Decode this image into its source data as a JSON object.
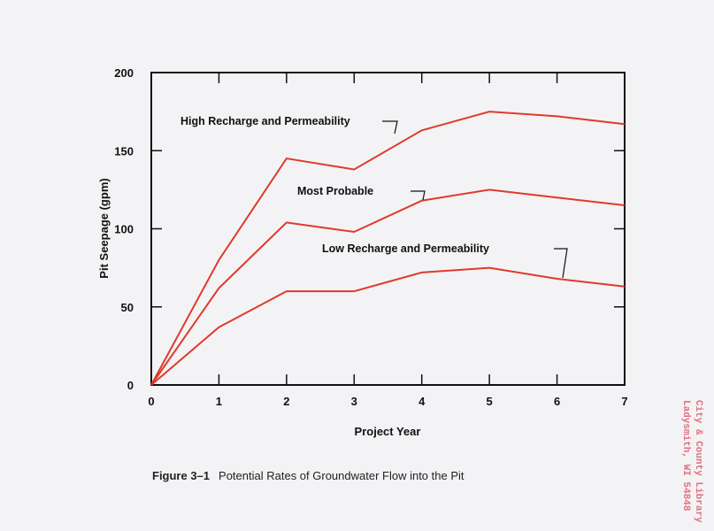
{
  "chart_data": {
    "type": "line",
    "xlabel": "Project Year",
    "ylabel": "Pit Seepage (gpm)",
    "x": [
      0,
      1,
      2,
      3,
      4,
      5,
      6,
      7
    ],
    "xlim": [
      0,
      7
    ],
    "ylim": [
      0,
      200
    ],
    "xticks": [
      "0",
      "1",
      "2",
      "3",
      "4",
      "5",
      "6",
      "7"
    ],
    "yticks": [
      "0",
      "50",
      "100",
      "150",
      "200"
    ],
    "grid": false,
    "line_color": "#e03a2a",
    "series": [
      {
        "name": "High Recharge and Permeability",
        "values": [
          0,
          80,
          145,
          138,
          163,
          175,
          172,
          167
        ]
      },
      {
        "name": "Most Probable",
        "values": [
          0,
          62,
          104,
          98,
          118,
          125,
          120,
          115
        ]
      },
      {
        "name": "Low Recharge and Permeability",
        "values": [
          0,
          37,
          60,
          60,
          72,
          75,
          68,
          63
        ]
      }
    ]
  },
  "caption": {
    "label": "Figure 3–1",
    "text": "Potential Rates of Groundwater Flow into the Pit"
  },
  "stamp": {
    "line1": "City & County Library",
    "line2": "Ladysmith, WI 54848"
  }
}
